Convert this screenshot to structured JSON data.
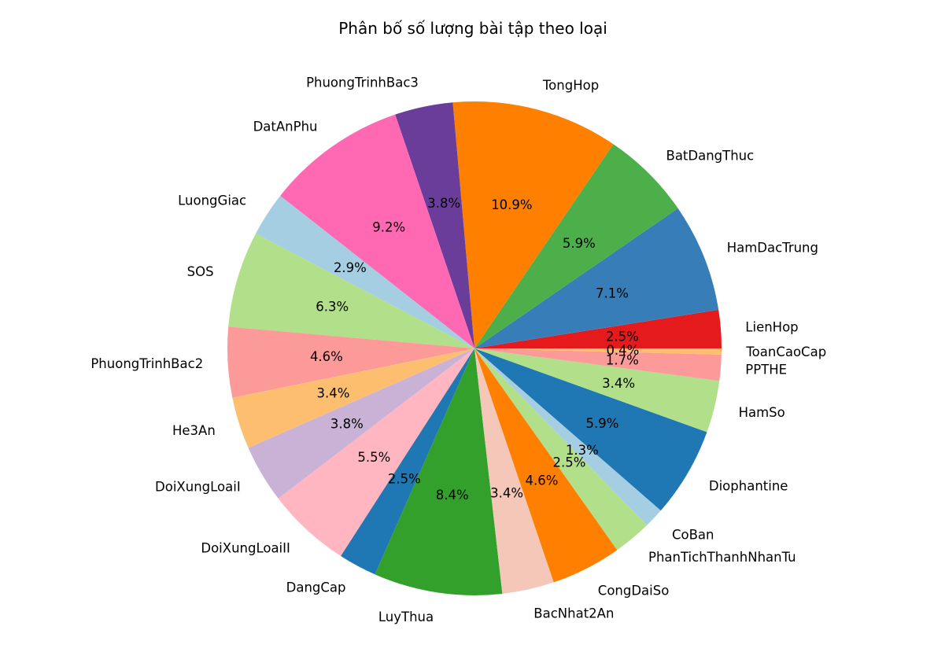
{
  "chart_data": {
    "type": "pie",
    "title": "Phân bố số lượng bài tập theo loại",
    "start_angle_deg": 0,
    "direction": "counterclockwise",
    "slices": [
      {
        "label": "LienHop",
        "percent": 2.5,
        "display": "2.5%",
        "color": "#e41a1c"
      },
      {
        "label": "HamDacTrung",
        "percent": 7.1,
        "display": "7.1%",
        "color": "#377eb8"
      },
      {
        "label": "BatDangThuc",
        "percent": 5.9,
        "display": "5.9%",
        "color": "#4daf4a"
      },
      {
        "label": "TongHop",
        "percent": 10.9,
        "display": "10.9%",
        "color": "#ff7f00"
      },
      {
        "label": "PhuongTrinhBac3",
        "percent": 3.8,
        "display": "3.8%",
        "color": "#6a3d9a"
      },
      {
        "label": "DatAnPhu",
        "percent": 9.2,
        "display": "9.2%",
        "color": "#ff69b4"
      },
      {
        "label": "LuongGiac",
        "percent": 2.9,
        "display": "2.9%",
        "color": "#a6cee3"
      },
      {
        "label": "SOS",
        "percent": 6.3,
        "display": "6.3%",
        "color": "#b2df8a"
      },
      {
        "label": "PhuongTrinhBac2",
        "percent": 4.6,
        "display": "4.6%",
        "color": "#fb9a99"
      },
      {
        "label": "He3An",
        "percent": 3.4,
        "display": "3.4%",
        "color": "#fdbf6f"
      },
      {
        "label": "DoiXungLoaiI",
        "percent": 3.8,
        "display": "3.8%",
        "color": "#cab2d6"
      },
      {
        "label": "DoiXungLoaiII",
        "percent": 5.5,
        "display": "5.5%",
        "color": "#ffb6c1"
      },
      {
        "label": "DangCap",
        "percent": 2.5,
        "display": "2.5%",
        "color": "#1f78b4"
      },
      {
        "label": "LuyThua",
        "percent": 8.4,
        "display": "8.4%",
        "color": "#33a02c"
      },
      {
        "label": "BacNhat2An",
        "percent": 3.4,
        "display": "3.4%",
        "color": "#f4c7b8"
      },
      {
        "label": "CongDaiSo",
        "percent": 4.6,
        "display": "4.6%",
        "color": "#ff7f00"
      },
      {
        "label": "PhanTichThanhNhanTu",
        "percent": 2.5,
        "display": "2.5%",
        "color": "#b2df8a"
      },
      {
        "label": "CoBan",
        "percent": 1.3,
        "display": "1.3%",
        "color": "#a6cee3"
      },
      {
        "label": "Diophantine",
        "percent": 5.9,
        "display": "5.9%",
        "color": "#1f78b4"
      },
      {
        "label": "HamSo",
        "percent": 3.4,
        "display": "3.4%",
        "color": "#b2df8a"
      },
      {
        "label": "PPTHE",
        "percent": 1.7,
        "display": "1.7%",
        "color": "#fb9a99"
      },
      {
        "label": "ToanCaoCap",
        "percent": 0.4,
        "display": "0.4%",
        "color": "#fdbf6f"
      }
    ]
  }
}
